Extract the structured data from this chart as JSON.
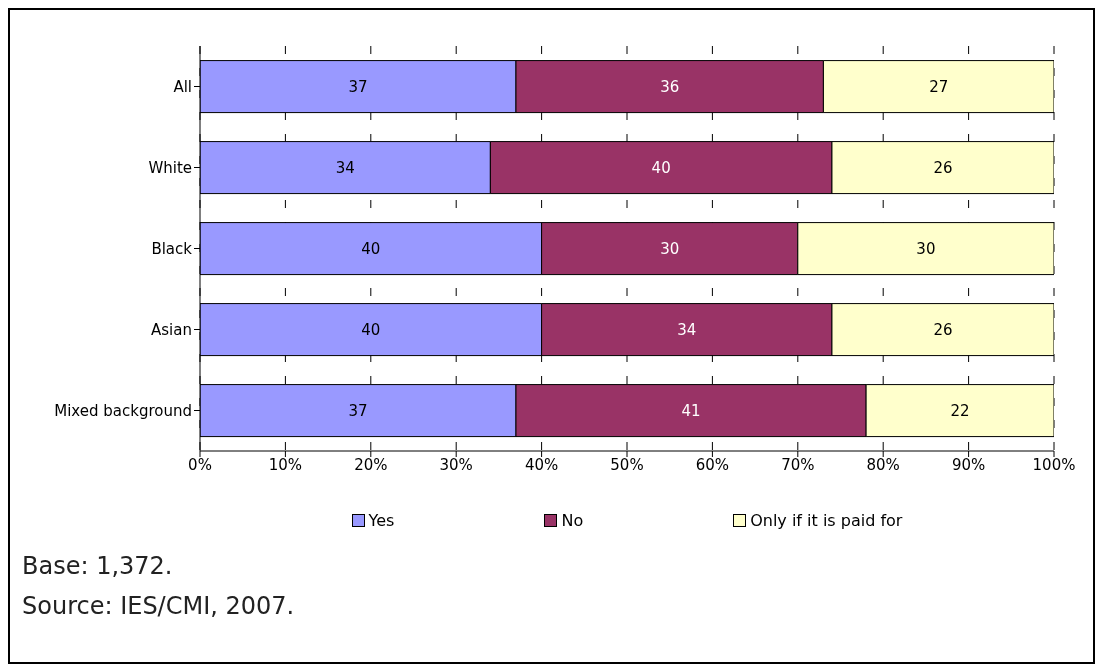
{
  "chart_data": {
    "type": "bar",
    "orientation": "horizontal",
    "stacked": true,
    "categories": [
      "All",
      "White",
      "Black",
      "Asian",
      "Mixed background"
    ],
    "series": [
      {
        "name": "Yes",
        "color": "#9999ff",
        "values": [
          37,
          34,
          40,
          40,
          37
        ]
      },
      {
        "name": "No",
        "color": "#993366",
        "values": [
          36,
          40,
          30,
          34,
          41
        ]
      },
      {
        "name": "Only if it is paid for",
        "color": "#ffffcc",
        "values": [
          27,
          26,
          30,
          26,
          22
        ]
      }
    ],
    "xlim": [
      0,
      100
    ],
    "xticks": [
      {
        "value": 0,
        "label": "0%"
      },
      {
        "value": 10,
        "label": "10%"
      },
      {
        "value": 20,
        "label": "20%"
      },
      {
        "value": 30,
        "label": "30%"
      },
      {
        "value": 40,
        "label": "40%"
      },
      {
        "value": 50,
        "label": "50%"
      },
      {
        "value": 60,
        "label": "60%"
      },
      {
        "value": 70,
        "label": "70%"
      },
      {
        "value": 80,
        "label": "80%"
      },
      {
        "value": 90,
        "label": "90%"
      },
      {
        "value": 100,
        "label": "100%"
      }
    ],
    "data_labels": true,
    "grid": "x",
    "legend": "bottom",
    "annotations": [
      "Base: 1,372.",
      "Source: IES/CMI, 2007."
    ]
  }
}
